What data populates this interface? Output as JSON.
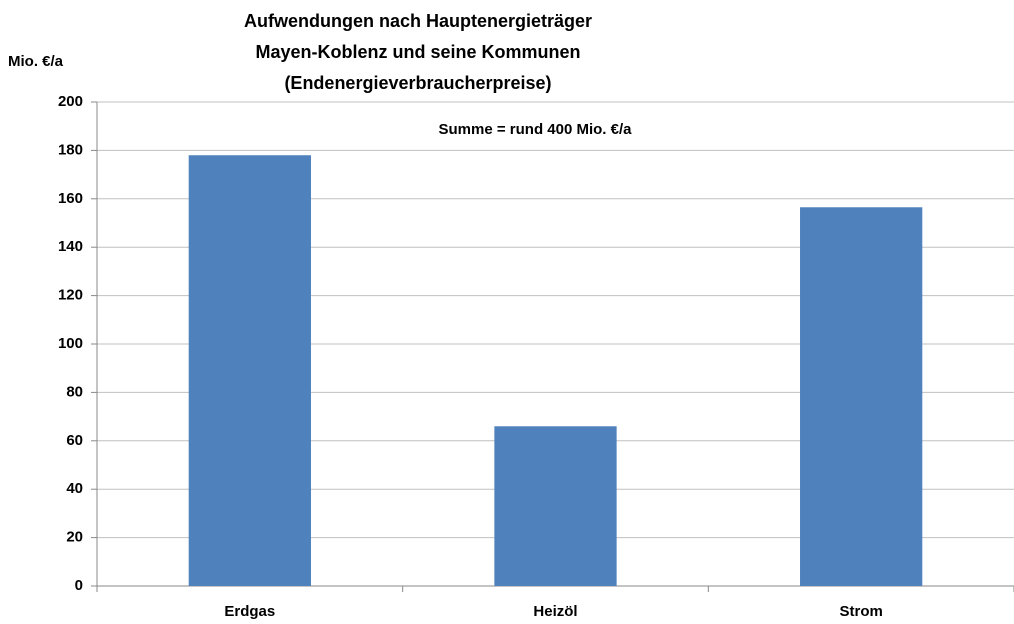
{
  "chart_data": {
    "type": "bar",
    "title": [
      "Aufwendungen nach Hauptenergieträger",
      "Mayen-Koblenz und  seine Kommunen",
      "(Endenergieverbraucherpreise)"
    ],
    "y_label": "Mio. €/a",
    "annotation": "Summe = rund 400 Mio. €/a",
    "categories": [
      "Erdgas",
      "Heizöl",
      "Strom"
    ],
    "values": [
      178,
      66,
      156.5
    ],
    "color": "#4f81bd",
    "ylim": [
      0,
      200
    ],
    "yticks": [
      0,
      20,
      40,
      60,
      80,
      100,
      120,
      140,
      160,
      180,
      200
    ],
    "grid": true
  }
}
